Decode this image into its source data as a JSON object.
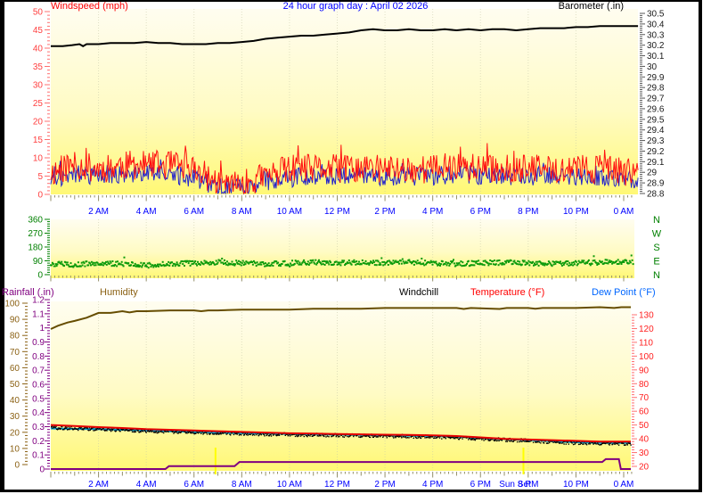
{
  "header": {
    "windspeed_label": "Windspeed (mph)",
    "title": "24 hour graph day : April 02 2026",
    "barometer_label": "Barometer (.in)"
  },
  "series_labels": {
    "rainfall": "Rainfall (.in)",
    "humidity": "Humidity",
    "windchill": "Windchill",
    "temperature": "Temperature (°F)",
    "dew_point": "Dew Point (°F)"
  },
  "sun_set_label": "Sun Set",
  "x_tick_labels": [
    "2 AM",
    "4 AM",
    "6 AM",
    "8 AM",
    "10 AM",
    "12 PM",
    "2 PM",
    "4 PM",
    "6 PM",
    "8 PM",
    "10 PM",
    "0 AM"
  ],
  "colors": {
    "frame": "#000000",
    "page_bg": "#ffffff",
    "plot_top": "#fffdf0",
    "plot_mid": "#fffbc4",
    "plot_bottom": "#fff875",
    "title_blue": "#0000ff",
    "x_label_blue": "#0000ff",
    "x_tick": "#938f6a",
    "gridline": "#c8c8a8",
    "windspeed_label": "#ff0000",
    "windspeed_line": "#ff1010",
    "windspeed_avg_line": "#2222cc",
    "windspeed_tick": "#ff7070",
    "windspeed_axis_text": "#ff4040",
    "barometer_line": "#000000",
    "barometer_tick": "#555555",
    "barometer_axis_text": "#1a1a1a",
    "direction_dots": "#0a9a0a",
    "direction_axis_text": "#008000",
    "compass_text": "#008000",
    "humidity_line": "#664d00",
    "humidity_axis_text": "#8b6114",
    "rainfall_line": "#800080",
    "rainfall_axis_text": "#800080",
    "temperature_line": "#e60000",
    "temperature_axis_text": "#ff2020",
    "dew_point_line": "#0099cc",
    "dew_point_label": "#0066ff",
    "windchill_dots": "#000000",
    "sun_marker": "#ffff00"
  },
  "chart_data": [
    {
      "id": "wind_barometer",
      "type": "line",
      "title": "24 hour graph day : April 02 2026",
      "x_range_hours": [
        0,
        24
      ],
      "x_tick_step_hours": 2,
      "left_axis": {
        "title": "Windspeed (mph)",
        "min": 0,
        "max": 50,
        "major": 5,
        "minor": 1
      },
      "right_axis": {
        "title": "Barometer (.in)",
        "min": 28.8,
        "max": 30.5,
        "major": 0.1,
        "minor": 0.02
      },
      "series": [
        {
          "name": "Barometer (.in)",
          "axis": "right",
          "points": [
            [
              0,
              30.19
            ],
            [
              0.5,
              30.19
            ],
            [
              0.9,
              30.2
            ],
            [
              1.2,
              30.21
            ],
            [
              1.35,
              30.19
            ],
            [
              1.5,
              30.21
            ],
            [
              2,
              30.21
            ],
            [
              2.5,
              30.22
            ],
            [
              3,
              30.22
            ],
            [
              3.5,
              30.22
            ],
            [
              4,
              30.23
            ],
            [
              4.5,
              30.22
            ],
            [
              5,
              30.22
            ],
            [
              5.5,
              30.21
            ],
            [
              6,
              30.21
            ],
            [
              6.5,
              30.21
            ],
            [
              7,
              30.22
            ],
            [
              7.5,
              30.22
            ],
            [
              8,
              30.23
            ],
            [
              8.5,
              30.24
            ],
            [
              9,
              30.26
            ],
            [
              9.5,
              30.27
            ],
            [
              10,
              30.28
            ],
            [
              10.5,
              30.29
            ],
            [
              11,
              30.29
            ],
            [
              11.5,
              30.3
            ],
            [
              12,
              30.31
            ],
            [
              12.5,
              30.32
            ],
            [
              13,
              30.34
            ],
            [
              13.5,
              30.35
            ],
            [
              14,
              30.34
            ],
            [
              14.5,
              30.34
            ],
            [
              15,
              30.35
            ],
            [
              15.5,
              30.34
            ],
            [
              16,
              30.34
            ],
            [
              16.5,
              30.35
            ],
            [
              17,
              30.34
            ],
            [
              17.5,
              30.35
            ],
            [
              18,
              30.34
            ],
            [
              18.5,
              30.35
            ],
            [
              19,
              30.35
            ],
            [
              19.5,
              30.34
            ],
            [
              20,
              30.35
            ],
            [
              20.5,
              30.36
            ],
            [
              21,
              30.36
            ],
            [
              21.5,
              30.36
            ],
            [
              22,
              30.37
            ],
            [
              22.5,
              30.37
            ],
            [
              23,
              30.38
            ],
            [
              23.5,
              30.38
            ],
            [
              24,
              30.38
            ],
            [
              24.6,
              30.38
            ]
          ]
        },
        {
          "name": "Windspeed (mph)",
          "axis": "left",
          "noise": 4,
          "seed": 11,
          "hourly": [
            6,
            8,
            7,
            8,
            8,
            8,
            7,
            3,
            2.5,
            5,
            7,
            7,
            7,
            7,
            7,
            7,
            7,
            8,
            7,
            7,
            7,
            7,
            7,
            7,
            6
          ]
        },
        {
          "name": "Windspeed average (mph)",
          "axis": "left",
          "noise": 2.6,
          "seed": 77,
          "hourly": [
            4,
            5.5,
            5,
            5.5,
            5.5,
            5.5,
            4.5,
            2,
            1.5,
            3.5,
            4.5,
            5,
            5,
            5,
            5,
            5,
            5,
            5.5,
            5,
            5,
            5,
            5,
            5,
            5,
            4
          ]
        }
      ]
    },
    {
      "id": "wind_direction",
      "type": "scatter",
      "left_axis": {
        "min": 0,
        "max": 360,
        "major": 90,
        "minor": 15
      },
      "right_axis_letters": [
        "N",
        "W",
        "S",
        "E",
        "N"
      ],
      "series": [
        {
          "name": "Wind direction (deg)",
          "noise": 16,
          "seed": 5,
          "hourly": [
            70,
            65,
            75,
            70,
            60,
            70,
            75,
            80,
            75,
            70,
            75,
            80,
            75,
            80,
            75,
            80,
            75,
            70,
            75,
            80,
            75,
            70,
            75,
            80,
            85
          ]
        }
      ]
    },
    {
      "id": "rain_humidity_temperature",
      "type": "line",
      "left_axis_outer": {
        "title": "Humidity",
        "min": 0,
        "max": 100,
        "major": 10,
        "minor": 2
      },
      "left_axis_inner": {
        "title": "Rainfall (.in)",
        "min": 0,
        "max": 1.2,
        "major": 0.1,
        "minor": 0.02
      },
      "right_axis": {
        "title": "Temperature (°F)",
        "min": 20,
        "max": 130,
        "major": 10,
        "minor": 2
      },
      "sun_markers": [
        {
          "hour": 6.9,
          "label": ""
        },
        {
          "hour": 19.8,
          "label": "Sun Set"
        }
      ],
      "series": [
        {
          "name": "Humidity (%)",
          "axis": "humidity",
          "points": [
            [
              0,
              84
            ],
            [
              0.3,
              86
            ],
            [
              0.7,
              88
            ],
            [
              1,
              89
            ],
            [
              1.5,
              91
            ],
            [
              2,
              94
            ],
            [
              2.5,
              94
            ],
            [
              3,
              95
            ],
            [
              3.3,
              94.3
            ],
            [
              3.6,
              95
            ],
            [
              4,
              95
            ],
            [
              5,
              95.5
            ],
            [
              6,
              95.5
            ],
            [
              6.3,
              95
            ],
            [
              6.6,
              95.5
            ],
            [
              7,
              95.5
            ],
            [
              8,
              96
            ],
            [
              9,
              96
            ],
            [
              10,
              96
            ],
            [
              11,
              96.5
            ],
            [
              12,
              96.5
            ],
            [
              13,
              96.5
            ],
            [
              14,
              97
            ],
            [
              15,
              97
            ],
            [
              16,
              97
            ],
            [
              17,
              97
            ],
            [
              17.3,
              96.4
            ],
            [
              17.6,
              97
            ],
            [
              18.8,
              96.4
            ],
            [
              19.1,
              97
            ],
            [
              20,
              97
            ],
            [
              20.3,
              96.5
            ],
            [
              20.6,
              97
            ],
            [
              21,
              97
            ],
            [
              22,
              97
            ],
            [
              23,
              97.5
            ],
            [
              23.6,
              97
            ],
            [
              23.9,
              97.5
            ],
            [
              24.3,
              97.5
            ]
          ]
        },
        {
          "name": "Temperature (°F)",
          "axis": "temp",
          "points": [
            [
              0,
              50
            ],
            [
              1,
              49.3
            ],
            [
              2,
              48.5
            ],
            [
              3,
              47.8
            ],
            [
              4,
              47
            ],
            [
              5,
              46.5
            ],
            [
              6,
              46
            ],
            [
              7,
              45.5
            ],
            [
              8,
              45
            ],
            [
              9,
              44.5
            ],
            [
              10,
              44
            ],
            [
              11,
              43.8
            ],
            [
              12,
              43.5
            ],
            [
              13,
              43.2
            ],
            [
              14,
              43
            ],
            [
              15,
              42.8
            ],
            [
              16,
              42.5
            ],
            [
              17,
              42
            ],
            [
              18,
              41
            ],
            [
              19,
              40
            ],
            [
              20,
              39.5
            ],
            [
              21,
              39
            ],
            [
              22,
              38.5
            ],
            [
              23,
              38
            ],
            [
              24,
              38
            ],
            [
              24.3,
              38
            ]
          ]
        },
        {
          "name": "Dew Point (°F)",
          "axis": "temp",
          "points": [
            [
              0,
              47.5
            ],
            [
              1,
              47.2
            ],
            [
              2,
              47
            ],
            [
              3,
              46.5
            ],
            [
              4,
              46
            ],
            [
              5,
              45.5
            ],
            [
              6,
              45
            ],
            [
              7,
              44.5
            ],
            [
              8,
              44
            ],
            [
              9,
              43.8
            ],
            [
              10,
              43.5
            ],
            [
              11,
              43.2
            ],
            [
              12,
              43
            ],
            [
              13,
              42.8
            ],
            [
              14,
              42.5
            ],
            [
              15,
              42.2
            ],
            [
              16,
              42
            ],
            [
              17,
              41.5
            ],
            [
              18,
              40.5
            ],
            [
              19,
              39.8
            ],
            [
              20,
              39
            ],
            [
              21,
              38.2
            ],
            [
              22,
              37.5
            ],
            [
              23,
              37
            ],
            [
              24,
              37
            ],
            [
              24.3,
              37
            ]
          ]
        },
        {
          "name": "Windchill (°F)",
          "axis": "temp",
          "style": "dots",
          "noise": 2.2,
          "seed": 42,
          "points": [
            [
              0,
              48.5
            ],
            [
              2,
              47.5
            ],
            [
              4,
              46.2
            ],
            [
              6,
              45.2
            ],
            [
              8,
              44.2
            ],
            [
              10,
              43.5
            ],
            [
              12,
              43
            ],
            [
              14,
              42.5
            ],
            [
              16,
              42
            ],
            [
              18,
              40.5
            ],
            [
              20,
              39
            ],
            [
              22,
              37.5
            ],
            [
              24,
              37
            ],
            [
              24.3,
              37
            ]
          ]
        },
        {
          "name": "Rainfall (.in)",
          "axis": "rain",
          "points": [
            [
              0,
              0
            ],
            [
              4.8,
              0
            ],
            [
              4.95,
              0.02
            ],
            [
              7.7,
              0.02
            ],
            [
              7.9,
              0.05
            ],
            [
              23.1,
              0.05
            ],
            [
              23.25,
              0.07
            ],
            [
              23.8,
              0.07
            ],
            [
              23.88,
              0
            ],
            [
              24.3,
              0
            ]
          ]
        }
      ]
    }
  ]
}
